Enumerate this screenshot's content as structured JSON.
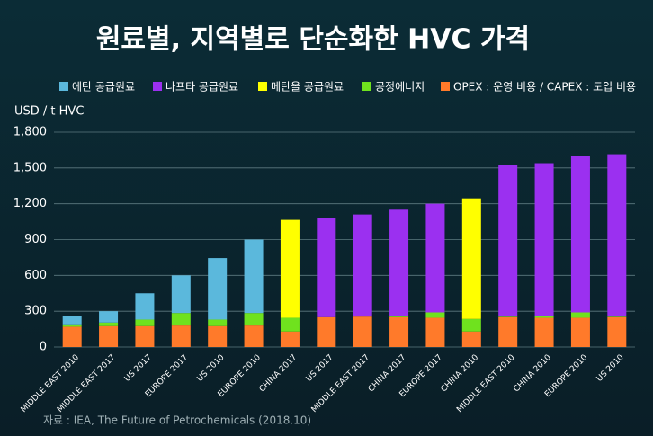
{
  "chart_data": {
    "type": "bar",
    "stacked": true,
    "title": "원료별, 지역별로 단순화한 HVC 가격",
    "y_label": "USD / t HVC",
    "source": "자료 : IEA, The Future of Petrochemicals (2018.10)",
    "categories": [
      "MIDDLE EAST 2010",
      "MIDDLE EAST 2017",
      "US 2017",
      "EUROPE 2017",
      "US 2010",
      "EUROPE 2010",
      "CHINA 2017",
      "US 2017",
      "MIDDLE EAST 2017",
      "CHINA 2017",
      "EUROPE 2017",
      "CHINA 2010",
      "MIDDLE EAST 2010",
      "CHINA 2010",
      "EUROPE 2010",
      "US 2010"
    ],
    "series": [
      {
        "name": "에탄 공급원료",
        "color": "#5bb8dc",
        "values": [
          70,
          95,
          220,
          315,
          515,
          615,
          null,
          null,
          null,
          null,
          null,
          null,
          null,
          null,
          null,
          null
        ]
      },
      {
        "name": "나프타 공급원료",
        "color": "#9b30f0",
        "values": [
          null,
          null,
          null,
          null,
          null,
          null,
          null,
          830,
          855,
          890,
          910,
          null,
          1270,
          1280,
          1310,
          1360
        ]
      },
      {
        "name": "메탄올 공급원료",
        "color": "#ffff00",
        "values": [
          null,
          null,
          null,
          null,
          null,
          null,
          820,
          null,
          null,
          null,
          null,
          1010,
          null,
          null,
          null,
          null
        ]
      },
      {
        "name": "공정에너지",
        "color": "#6fe21e",
        "values": [
          20,
          30,
          55,
          105,
          55,
          105,
          115,
          null,
          null,
          10,
          45,
          105,
          5,
          15,
          45,
          5
        ]
      },
      {
        "name": "OPEX : 운영 비용 / CAPEX : 도입 비용",
        "color": "#ff7a2a",
        "values": [
          170,
          175,
          175,
          180,
          175,
          180,
          130,
          250,
          255,
          250,
          245,
          130,
          250,
          245,
          245,
          250
        ]
      }
    ],
    "ylim": [
      0,
      1800
    ],
    "yticks": [
      0,
      300,
      600,
      900,
      {
        "value": 1200,
        "label": "1,200"
      },
      {
        "value": 1500,
        "label": "1,500"
      },
      {
        "value": 1800,
        "label": "1,800"
      }
    ],
    "grid": true
  }
}
